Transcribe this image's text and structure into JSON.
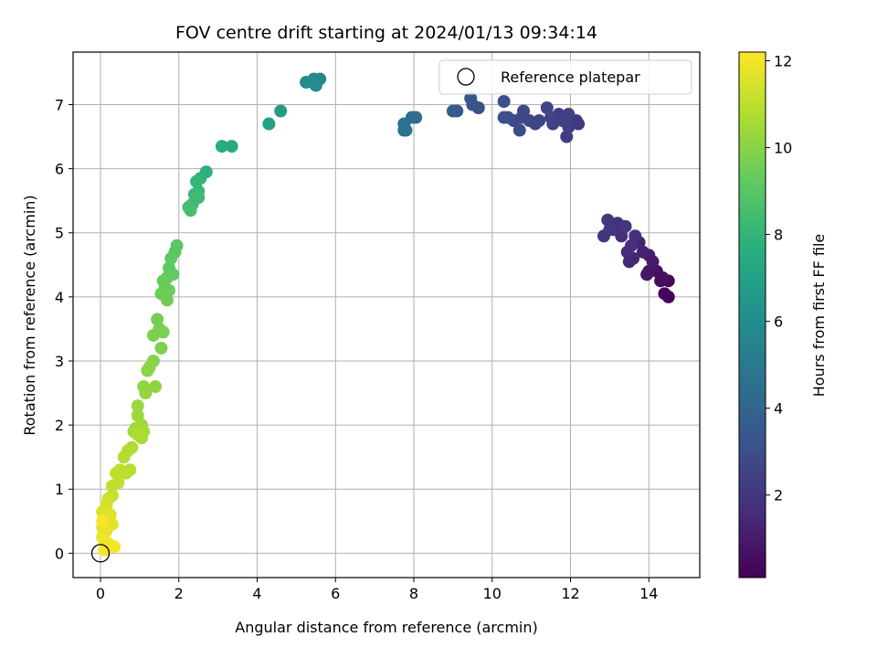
{
  "chart_data": {
    "type": "scatter",
    "title": "FOV centre drift starting at 2024/01/13 09:34:14",
    "xlabel": "Angular distance from reference (arcmin)",
    "ylabel": "Rotation from reference (arcmin)",
    "xlim": [
      -0.7,
      15.3
    ],
    "ylim": [
      -0.38,
      7.82
    ],
    "xticks": [
      0,
      2,
      4,
      6,
      8,
      10,
      12,
      14
    ],
    "yticks": [
      0,
      1,
      2,
      3,
      4,
      5,
      6,
      7
    ],
    "grid": true,
    "legend": {
      "location": "top-right",
      "entries": [
        "Reference platepar"
      ]
    },
    "reference_point": {
      "x": 0,
      "y": 0,
      "label": "Reference platepar"
    },
    "colorbar": {
      "label": "Hours from first FF file",
      "colormap": "viridis",
      "range": [
        0.1,
        12.2
      ],
      "ticks": [
        2,
        4,
        6,
        8,
        10,
        12
      ]
    },
    "points": [
      [
        14.5,
        4.0,
        0.2
      ],
      [
        14.4,
        4.05,
        0.3
      ],
      [
        14.5,
        4.25,
        0.4
      ],
      [
        14.3,
        4.25,
        0.5
      ],
      [
        14.35,
        4.3,
        0.6
      ],
      [
        14.2,
        4.4,
        0.7
      ],
      [
        14.0,
        4.4,
        0.8
      ],
      [
        13.95,
        4.35,
        0.9
      ],
      [
        14.1,
        4.55,
        1.0
      ],
      [
        14.0,
        4.65,
        1.1
      ],
      [
        13.85,
        4.7,
        1.2
      ],
      [
        13.75,
        4.85,
        1.3
      ],
      [
        13.6,
        4.6,
        1.35
      ],
      [
        13.5,
        4.55,
        1.4
      ],
      [
        13.45,
        4.7,
        1.5
      ],
      [
        13.55,
        4.8,
        1.6
      ],
      [
        13.65,
        4.95,
        1.7
      ],
      [
        13.3,
        4.95,
        1.75
      ],
      [
        13.1,
        5.05,
        1.8
      ],
      [
        13.2,
        5.15,
        1.85
      ],
      [
        12.95,
        5.2,
        1.9
      ],
      [
        12.85,
        4.95,
        1.95
      ],
      [
        13.4,
        5.1,
        2.0
      ],
      [
        13.0,
        5.05,
        2.05
      ],
      [
        12.2,
        6.7,
        2.1
      ],
      [
        12.15,
        6.75,
        2.15
      ],
      [
        11.9,
        6.5,
        2.2
      ],
      [
        11.95,
        6.65,
        2.25
      ],
      [
        11.8,
        6.75,
        2.3
      ],
      [
        11.7,
        6.85,
        2.35
      ],
      [
        11.95,
        6.85,
        2.4
      ],
      [
        11.55,
        6.7,
        2.45
      ],
      [
        11.4,
        6.95,
        2.5
      ],
      [
        11.5,
        6.8,
        2.55
      ],
      [
        11.2,
        6.75,
        2.6
      ],
      [
        11.1,
        6.7,
        2.65
      ],
      [
        10.95,
        6.75,
        2.7
      ],
      [
        10.8,
        6.9,
        2.75
      ],
      [
        10.75,
        6.8,
        2.8
      ],
      [
        10.7,
        6.6,
        2.85
      ],
      [
        10.55,
        6.75,
        2.9
      ],
      [
        10.4,
        6.8,
        2.95
      ],
      [
        10.3,
        6.8,
        3.0
      ],
      [
        10.3,
        7.05,
        3.05
      ],
      [
        9.65,
        6.95,
        3.1
      ],
      [
        9.5,
        7.0,
        3.2
      ],
      [
        9.45,
        7.1,
        3.3
      ],
      [
        9.1,
        6.9,
        3.5
      ],
      [
        9.0,
        6.9,
        3.6
      ],
      [
        8.05,
        6.8,
        4.3
      ],
      [
        7.95,
        6.8,
        4.4
      ],
      [
        7.75,
        6.6,
        4.5
      ],
      [
        7.75,
        6.7,
        4.6
      ],
      [
        7.8,
        6.6,
        4.7
      ],
      [
        5.6,
        7.4,
        5.6
      ],
      [
        5.45,
        7.4,
        5.7
      ],
      [
        5.4,
        7.35,
        5.8
      ],
      [
        5.5,
        7.3,
        5.9
      ],
      [
        5.25,
        7.35,
        6.0
      ],
      [
        4.6,
        6.9,
        6.8
      ],
      [
        4.3,
        6.7,
        7.0
      ],
      [
        3.35,
        6.35,
        7.4
      ],
      [
        3.1,
        6.35,
        7.5
      ],
      [
        2.7,
        5.95,
        7.8
      ],
      [
        2.55,
        5.85,
        7.9
      ],
      [
        2.45,
        5.8,
        8.0
      ],
      [
        2.5,
        5.65,
        8.1
      ],
      [
        2.4,
        5.6,
        8.2
      ],
      [
        2.5,
        5.55,
        8.3
      ],
      [
        2.35,
        5.45,
        8.4
      ],
      [
        2.25,
        5.4,
        8.5
      ],
      [
        2.3,
        5.35,
        8.6
      ],
      [
        1.95,
        4.8,
        9.0
      ],
      [
        1.9,
        4.7,
        9.05
      ],
      [
        1.8,
        4.6,
        9.1
      ],
      [
        1.75,
        4.45,
        9.15
      ],
      [
        1.85,
        4.35,
        9.2
      ],
      [
        1.7,
        4.3,
        9.25
      ],
      [
        1.6,
        4.25,
        9.3
      ],
      [
        1.65,
        4.15,
        9.35
      ],
      [
        1.55,
        4.05,
        9.4
      ],
      [
        1.75,
        4.1,
        9.45
      ],
      [
        1.7,
        3.95,
        9.5
      ],
      [
        1.45,
        3.65,
        9.6
      ],
      [
        1.5,
        3.5,
        9.65
      ],
      [
        1.6,
        3.45,
        9.7
      ],
      [
        1.35,
        3.4,
        9.75
      ],
      [
        1.55,
        3.2,
        9.8
      ],
      [
        1.35,
        3.0,
        9.9
      ],
      [
        1.2,
        2.85,
        10.0
      ],
      [
        1.25,
        2.9,
        10.05
      ],
      [
        1.4,
        2.6,
        10.1
      ],
      [
        1.1,
        2.6,
        10.15
      ],
      [
        1.15,
        2.5,
        10.2
      ],
      [
        0.95,
        2.3,
        10.3
      ],
      [
        0.95,
        2.15,
        10.35
      ],
      [
        1.05,
        2.0,
        10.4
      ],
      [
        0.9,
        1.95,
        10.45
      ],
      [
        0.85,
        1.9,
        10.5
      ],
      [
        1.1,
        1.9,
        10.55
      ],
      [
        1.05,
        1.8,
        10.6
      ],
      [
        0.95,
        1.85,
        10.65
      ],
      [
        0.8,
        1.65,
        10.7
      ],
      [
        0.7,
        1.6,
        10.75
      ],
      [
        0.6,
        1.5,
        10.8
      ],
      [
        0.75,
        1.3,
        10.85
      ],
      [
        0.65,
        1.25,
        10.9
      ],
      [
        0.5,
        1.3,
        10.95
      ],
      [
        0.4,
        1.25,
        11.0
      ],
      [
        0.45,
        1.1,
        11.05
      ],
      [
        0.3,
        1.05,
        11.1
      ],
      [
        0.3,
        0.9,
        11.2
      ],
      [
        0.2,
        0.85,
        11.3
      ],
      [
        0.15,
        0.75,
        11.4
      ],
      [
        0.05,
        0.65,
        11.5
      ],
      [
        0.25,
        0.6,
        11.55
      ],
      [
        0.1,
        0.55,
        11.6
      ],
      [
        0.2,
        0.5,
        11.65
      ],
      [
        0.3,
        0.45,
        11.7
      ],
      [
        0.05,
        0.4,
        11.75
      ],
      [
        0.15,
        0.35,
        11.8
      ],
      [
        0.05,
        0.25,
        11.85
      ],
      [
        0.1,
        0.2,
        11.9
      ],
      [
        0.2,
        0.15,
        11.95
      ],
      [
        0.35,
        0.1,
        12.0
      ],
      [
        0.1,
        0.05,
        12.05
      ],
      [
        0.05,
        0.5,
        12.1
      ]
    ]
  }
}
